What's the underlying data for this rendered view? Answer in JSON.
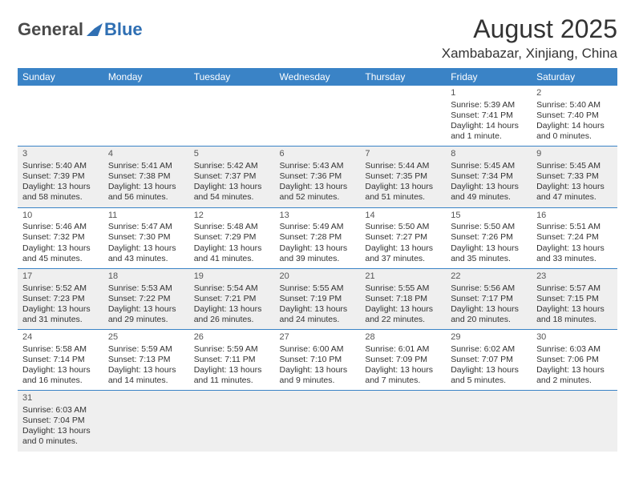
{
  "logo": {
    "part1": "General",
    "part2": "Blue"
  },
  "title": {
    "month": "August 2025",
    "location": "Xambabazar, Xinjiang, China"
  },
  "weekdays": [
    "Sunday",
    "Monday",
    "Tuesday",
    "Wednesday",
    "Thursday",
    "Friday",
    "Saturday"
  ],
  "colors": {
    "header_bg": "#3a83c6",
    "header_text": "#ffffff",
    "row_alt": "#efefef",
    "border": "#3a83c6",
    "logo_blue": "#2f6fb3",
    "logo_gray": "#4a4a4a"
  },
  "rows": [
    {
      "cls": "row-odd",
      "cells": [
        {
          "empty": true
        },
        {
          "empty": true
        },
        {
          "empty": true
        },
        {
          "empty": true
        },
        {
          "empty": true
        },
        {
          "day": "1",
          "sunrise": "5:39 AM",
          "sunset": "7:41 PM",
          "day_h": "14",
          "day_m": "1 minute"
        },
        {
          "day": "2",
          "sunrise": "5:40 AM",
          "sunset": "7:40 PM",
          "day_h": "14",
          "day_m": "0 minutes"
        }
      ]
    },
    {
      "cls": "row-even",
      "cells": [
        {
          "day": "3",
          "sunrise": "5:40 AM",
          "sunset": "7:39 PM",
          "day_h": "13",
          "day_m": "58 minutes"
        },
        {
          "day": "4",
          "sunrise": "5:41 AM",
          "sunset": "7:38 PM",
          "day_h": "13",
          "day_m": "56 minutes"
        },
        {
          "day": "5",
          "sunrise": "5:42 AM",
          "sunset": "7:37 PM",
          "day_h": "13",
          "day_m": "54 minutes"
        },
        {
          "day": "6",
          "sunrise": "5:43 AM",
          "sunset": "7:36 PM",
          "day_h": "13",
          "day_m": "52 minutes"
        },
        {
          "day": "7",
          "sunrise": "5:44 AM",
          "sunset": "7:35 PM",
          "day_h": "13",
          "day_m": "51 minutes"
        },
        {
          "day": "8",
          "sunrise": "5:45 AM",
          "sunset": "7:34 PM",
          "day_h": "13",
          "day_m": "49 minutes"
        },
        {
          "day": "9",
          "sunrise": "5:45 AM",
          "sunset": "7:33 PM",
          "day_h": "13",
          "day_m": "47 minutes"
        }
      ]
    },
    {
      "cls": "row-odd",
      "cells": [
        {
          "day": "10",
          "sunrise": "5:46 AM",
          "sunset": "7:32 PM",
          "day_h": "13",
          "day_m": "45 minutes"
        },
        {
          "day": "11",
          "sunrise": "5:47 AM",
          "sunset": "7:30 PM",
          "day_h": "13",
          "day_m": "43 minutes"
        },
        {
          "day": "12",
          "sunrise": "5:48 AM",
          "sunset": "7:29 PM",
          "day_h": "13",
          "day_m": "41 minutes"
        },
        {
          "day": "13",
          "sunrise": "5:49 AM",
          "sunset": "7:28 PM",
          "day_h": "13",
          "day_m": "39 minutes"
        },
        {
          "day": "14",
          "sunrise": "5:50 AM",
          "sunset": "7:27 PM",
          "day_h": "13",
          "day_m": "37 minutes"
        },
        {
          "day": "15",
          "sunrise": "5:50 AM",
          "sunset": "7:26 PM",
          "day_h": "13",
          "day_m": "35 minutes"
        },
        {
          "day": "16",
          "sunrise": "5:51 AM",
          "sunset": "7:24 PM",
          "day_h": "13",
          "day_m": "33 minutes"
        }
      ]
    },
    {
      "cls": "row-even",
      "cells": [
        {
          "day": "17",
          "sunrise": "5:52 AM",
          "sunset": "7:23 PM",
          "day_h": "13",
          "day_m": "31 minutes"
        },
        {
          "day": "18",
          "sunrise": "5:53 AM",
          "sunset": "7:22 PM",
          "day_h": "13",
          "day_m": "29 minutes"
        },
        {
          "day": "19",
          "sunrise": "5:54 AM",
          "sunset": "7:21 PM",
          "day_h": "13",
          "day_m": "26 minutes"
        },
        {
          "day": "20",
          "sunrise": "5:55 AM",
          "sunset": "7:19 PM",
          "day_h": "13",
          "day_m": "24 minutes"
        },
        {
          "day": "21",
          "sunrise": "5:55 AM",
          "sunset": "7:18 PM",
          "day_h": "13",
          "day_m": "22 minutes"
        },
        {
          "day": "22",
          "sunrise": "5:56 AM",
          "sunset": "7:17 PM",
          "day_h": "13",
          "day_m": "20 minutes"
        },
        {
          "day": "23",
          "sunrise": "5:57 AM",
          "sunset": "7:15 PM",
          "day_h": "13",
          "day_m": "18 minutes"
        }
      ]
    },
    {
      "cls": "row-odd",
      "cells": [
        {
          "day": "24",
          "sunrise": "5:58 AM",
          "sunset": "7:14 PM",
          "day_h": "13",
          "day_m": "16 minutes"
        },
        {
          "day": "25",
          "sunrise": "5:59 AM",
          "sunset": "7:13 PM",
          "day_h": "13",
          "day_m": "14 minutes"
        },
        {
          "day": "26",
          "sunrise": "5:59 AM",
          "sunset": "7:11 PM",
          "day_h": "13",
          "day_m": "11 minutes"
        },
        {
          "day": "27",
          "sunrise": "6:00 AM",
          "sunset": "7:10 PM",
          "day_h": "13",
          "day_m": "9 minutes"
        },
        {
          "day": "28",
          "sunrise": "6:01 AM",
          "sunset": "7:09 PM",
          "day_h": "13",
          "day_m": "7 minutes"
        },
        {
          "day": "29",
          "sunrise": "6:02 AM",
          "sunset": "7:07 PM",
          "day_h": "13",
          "day_m": "5 minutes"
        },
        {
          "day": "30",
          "sunrise": "6:03 AM",
          "sunset": "7:06 PM",
          "day_h": "13",
          "day_m": "2 minutes"
        }
      ]
    },
    {
      "cls": "row-even last-row",
      "cells": [
        {
          "day": "31",
          "sunrise": "6:03 AM",
          "sunset": "7:04 PM",
          "day_h": "13",
          "day_m": "0 minutes"
        },
        {
          "empty": true
        },
        {
          "empty": true
        },
        {
          "empty": true
        },
        {
          "empty": true
        },
        {
          "empty": true
        },
        {
          "empty": true
        }
      ]
    }
  ]
}
